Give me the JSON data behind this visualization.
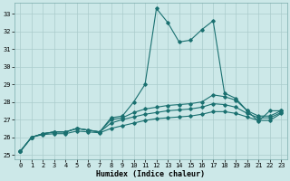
{
  "title": "",
  "xlabel": "Humidex (Indice chaleur)",
  "bg_color": "#cce8e8",
  "line_color": "#1a7070",
  "grid_color": "#aacccc",
  "xlim": [
    -0.5,
    23.5
  ],
  "ylim": [
    24.75,
    33.6
  ],
  "xticks": [
    0,
    1,
    2,
    3,
    4,
    5,
    6,
    7,
    8,
    9,
    10,
    11,
    12,
    13,
    14,
    15,
    16,
    17,
    18,
    19,
    20,
    21,
    22,
    23
  ],
  "yticks": [
    25,
    26,
    27,
    28,
    29,
    30,
    31,
    32,
    33
  ],
  "series1_y": [
    25.2,
    26.0,
    26.2,
    26.3,
    26.3,
    26.5,
    26.4,
    26.3,
    27.1,
    27.2,
    28.0,
    29.0,
    33.3,
    32.5,
    31.4,
    31.5,
    32.1,
    32.6,
    28.5,
    28.2,
    27.5,
    26.9,
    27.5,
    27.5
  ],
  "series2_y": [
    25.2,
    26.0,
    26.2,
    26.3,
    26.3,
    26.5,
    26.4,
    26.3,
    27.0,
    27.1,
    27.4,
    27.6,
    27.7,
    27.8,
    27.85,
    27.9,
    28.0,
    28.4,
    28.3,
    28.1,
    27.5,
    27.2,
    27.2,
    27.5
  ],
  "series3_y": [
    25.2,
    26.0,
    26.2,
    26.3,
    26.3,
    26.5,
    26.4,
    26.3,
    26.8,
    27.0,
    27.15,
    27.3,
    27.4,
    27.5,
    27.55,
    27.6,
    27.7,
    27.9,
    27.85,
    27.7,
    27.35,
    27.1,
    27.1,
    27.4
  ],
  "series4_y": [
    25.2,
    26.0,
    26.15,
    26.2,
    26.2,
    26.35,
    26.3,
    26.25,
    26.5,
    26.65,
    26.8,
    26.95,
    27.05,
    27.1,
    27.15,
    27.2,
    27.3,
    27.45,
    27.45,
    27.35,
    27.15,
    26.95,
    26.95,
    27.35
  ]
}
